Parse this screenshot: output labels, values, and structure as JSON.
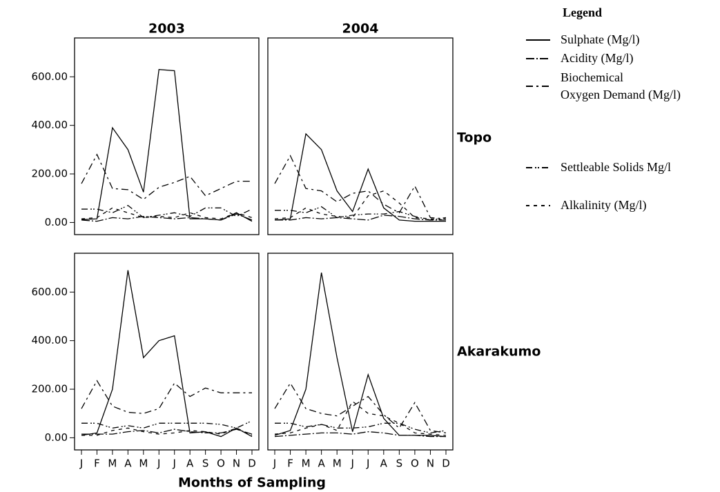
{
  "chart_data": {
    "type": "line",
    "legend_title": "Legend",
    "x_label": "Months of Sampling",
    "column_labels": [
      "2003",
      "2004"
    ],
    "row_labels": [
      "Topo",
      "Akarakumo"
    ],
    "categories": [
      "J",
      "F",
      "M",
      "A",
      "M",
      "J",
      "J",
      "A",
      "S",
      "O",
      "N",
      "D"
    ],
    "ylim": [
      -50,
      760
    ],
    "yticks": [
      {
        "value": 0,
        "label": "0.00"
      },
      {
        "value": 200,
        "label": "200.00"
      },
      {
        "value": 400,
        "label": "400.00"
      },
      {
        "value": 600,
        "label": "600.00"
      }
    ],
    "series": [
      {
        "name": "Sulphate (Mg/l)",
        "color": "#000000",
        "dash": "none"
      },
      {
        "name": "Acidity (Mg/l)",
        "color": "#000000",
        "dash": "12,3,2,3"
      },
      {
        "name": "Biochemical\nOxygen Demand (Mg/l)",
        "color": "#000000",
        "dash": "10,5,3,5"
      },
      {
        "name": "Settleable Solids Mg/l",
        "color": "#000000",
        "dash": "9,4,2,2,2,4"
      },
      {
        "name": "Alkalinity (Mg/l)",
        "color": "#000000",
        "dash": "5,6"
      }
    ],
    "panels": [
      {
        "row": 0,
        "col": 0,
        "series": [
          {
            "values": [
              12,
              15,
              390,
              300,
              125,
              630,
              625,
              15,
              15,
              10,
              40,
              5
            ]
          },
          {
            "values": [
              10,
              5,
              20,
              15,
              25,
              20,
              15,
              20,
              15,
              10,
              35,
              10
            ]
          },
          {
            "values": [
              160,
              280,
              140,
              135,
              95,
              145,
              165,
              190,
              110,
              140,
              170,
              170
            ]
          },
          {
            "values": [
              55,
              55,
              40,
              70,
              20,
              30,
              40,
              25,
              60,
              60,
              25,
              55
            ]
          },
          {
            "values": [
              15,
              20,
              60,
              40,
              20,
              25,
              20,
              40,
              20,
              15,
              40,
              20
            ]
          }
        ]
      },
      {
        "row": 0,
        "col": 1,
        "series": [
          {
            "values": [
              10,
              15,
              365,
              300,
              130,
              45,
              220,
              60,
              10,
              5,
              5,
              5
            ]
          },
          {
            "values": [
              10,
              10,
              20,
              15,
              20,
              15,
              10,
              30,
              25,
              15,
              10,
              10
            ]
          },
          {
            "values": [
              160,
              275,
              140,
              130,
              85,
              120,
              130,
              75,
              40,
              150,
              20,
              15
            ]
          },
          {
            "values": [
              50,
              50,
              40,
              65,
              20,
              30,
              35,
              35,
              45,
              25,
              10,
              20
            ]
          },
          {
            "values": [
              15,
              20,
              60,
              35,
              25,
              20,
              110,
              130,
              80,
              20,
              15,
              10
            ]
          }
        ]
      },
      {
        "row": 1,
        "col": 0,
        "series": [
          {
            "values": [
              10,
              20,
              200,
              690,
              330,
              400,
              420,
              20,
              25,
              5,
              40,
              5
            ]
          },
          {
            "values": [
              15,
              15,
              15,
              25,
              30,
              20,
              35,
              25,
              20,
              20,
              35,
              15
            ]
          },
          {
            "values": [
              120,
              235,
              130,
              105,
              100,
              120,
              225,
              170,
              205,
              185,
              185,
              185
            ]
          },
          {
            "values": [
              60,
              60,
              40,
              50,
              40,
              60,
              60,
              60,
              60,
              55,
              40,
              70
            ]
          },
          {
            "values": [
              10,
              10,
              30,
              40,
              25,
              15,
              20,
              30,
              25,
              15,
              40,
              10
            ]
          }
        ]
      },
      {
        "row": 1,
        "col": 1,
        "series": [
          {
            "values": [
              10,
              30,
              200,
              680,
              330,
              25,
              260,
              80,
              10,
              10,
              10,
              5
            ]
          },
          {
            "values": [
              5,
              10,
              15,
              20,
              20,
              15,
              25,
              20,
              10,
              10,
              5,
              5
            ]
          },
          {
            "values": [
              120,
              225,
              120,
              100,
              90,
              130,
              170,
              95,
              40,
              145,
              30,
              20
            ]
          },
          {
            "values": [
              60,
              60,
              45,
              55,
              40,
              40,
              45,
              60,
              60,
              35,
              20,
              30
            ]
          },
          {
            "values": [
              15,
              20,
              40,
              55,
              30,
              150,
              100,
              90,
              60,
              20,
              15,
              10
            ]
          }
        ]
      }
    ]
  }
}
